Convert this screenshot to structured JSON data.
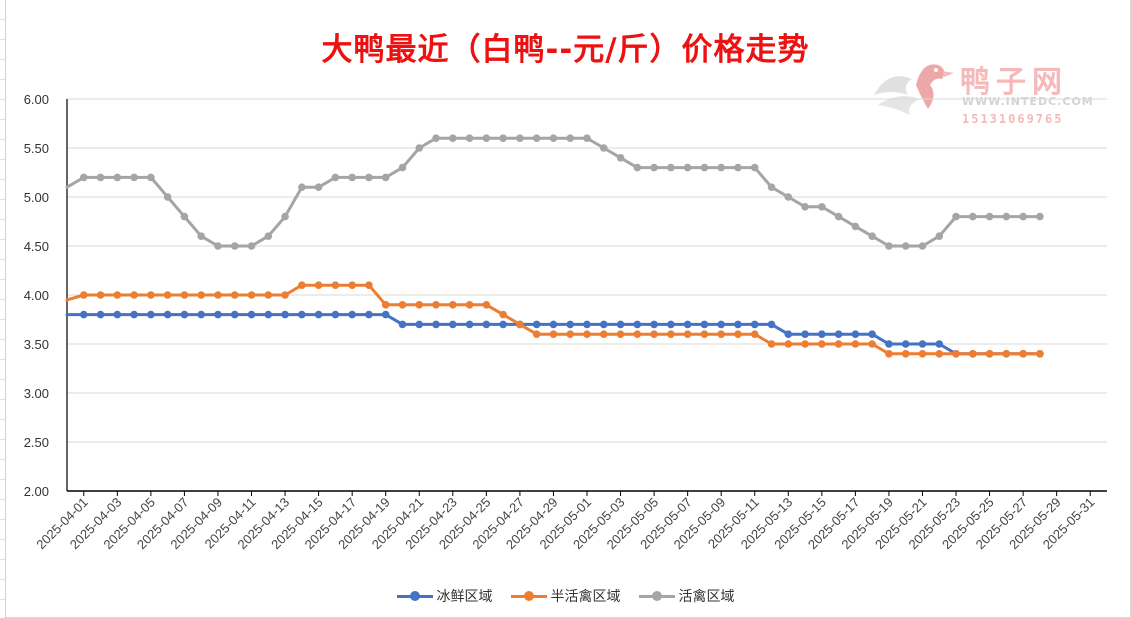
{
  "chart_data": {
    "type": "line",
    "title": "大鸭最近（白鸭--元/斤）价格走势",
    "xlabel": "",
    "ylabel": "",
    "ylim": [
      2.0,
      6.0
    ],
    "y_ticks": [
      "2.00",
      "2.50",
      "3.00",
      "3.50",
      "4.00",
      "4.50",
      "5.00",
      "5.50",
      "6.00"
    ],
    "x_tick_labels": [
      "2025-04-01",
      "2025-04-03",
      "2025-04-05",
      "2025-04-07",
      "2025-04-09",
      "2025-04-11",
      "2025-04-13",
      "2025-04-15",
      "2025-04-17",
      "2025-04-19",
      "2025-04-21",
      "2025-04-23",
      "2025-04-25",
      "2025-04-27",
      "2025-04-29",
      "2025-05-01",
      "2025-05-03",
      "2025-05-05",
      "2025-05-07",
      "2025-05-09",
      "2025-05-11",
      "2025-05-13",
      "2025-05-15",
      "2025-05-17",
      "2025-05-19",
      "2025-05-21",
      "2025-05-23",
      "2025-05-25",
      "2025-05-27",
      "2025-05-29",
      "2025-05-31"
    ],
    "x_range": [
      "2025-03-31",
      "2025-06-01"
    ],
    "grid": true,
    "legend_position": "bottom",
    "dates": [
      "2025-04-01",
      "2025-04-02",
      "2025-04-03",
      "2025-04-04",
      "2025-04-05",
      "2025-04-06",
      "2025-04-07",
      "2025-04-08",
      "2025-04-09",
      "2025-04-10",
      "2025-04-11",
      "2025-04-12",
      "2025-04-13",
      "2025-04-14",
      "2025-04-15",
      "2025-04-16",
      "2025-04-17",
      "2025-04-18",
      "2025-04-19",
      "2025-04-20",
      "2025-04-21",
      "2025-04-22",
      "2025-04-23",
      "2025-04-24",
      "2025-04-25",
      "2025-04-26",
      "2025-04-27",
      "2025-04-28",
      "2025-04-29",
      "2025-04-30",
      "2025-05-01",
      "2025-05-02",
      "2025-05-03",
      "2025-05-04",
      "2025-05-05",
      "2025-05-06",
      "2025-05-07",
      "2025-05-08",
      "2025-05-09",
      "2025-05-10",
      "2025-05-11",
      "2025-05-12",
      "2025-05-13",
      "2025-05-14",
      "2025-05-15",
      "2025-05-16",
      "2025-05-17",
      "2025-05-18",
      "2025-05-19",
      "2025-05-20",
      "2025-05-21",
      "2025-05-22",
      "2025-05-23",
      "2025-05-24",
      "2025-05-25",
      "2025-05-26",
      "2025-05-27",
      "2025-05-28"
    ],
    "series": [
      {
        "name": "冰鲜区域",
        "color": "#4472c4",
        "start_value": 3.8,
        "values": [
          3.8,
          3.8,
          3.8,
          3.8,
          3.8,
          3.8,
          3.8,
          3.8,
          3.8,
          3.8,
          3.8,
          3.8,
          3.8,
          3.8,
          3.8,
          3.8,
          3.8,
          3.8,
          3.8,
          3.7,
          3.7,
          3.7,
          3.7,
          3.7,
          3.7,
          3.7,
          3.7,
          3.7,
          3.7,
          3.7,
          3.7,
          3.7,
          3.7,
          3.7,
          3.7,
          3.7,
          3.7,
          3.7,
          3.7,
          3.7,
          3.7,
          3.7,
          3.6,
          3.6,
          3.6,
          3.6,
          3.6,
          3.6,
          3.5,
          3.5,
          3.5,
          3.5,
          3.4,
          3.4,
          3.4,
          3.4,
          3.4,
          3.4
        ]
      },
      {
        "name": "半活禽区域",
        "color": "#ed7d31",
        "start_value": 3.95,
        "values": [
          4.0,
          4.0,
          4.0,
          4.0,
          4.0,
          4.0,
          4.0,
          4.0,
          4.0,
          4.0,
          4.0,
          4.0,
          4.0,
          4.1,
          4.1,
          4.1,
          4.1,
          4.1,
          3.9,
          3.9,
          3.9,
          3.9,
          3.9,
          3.9,
          3.9,
          3.8,
          3.7,
          3.6,
          3.6,
          3.6,
          3.6,
          3.6,
          3.6,
          3.6,
          3.6,
          3.6,
          3.6,
          3.6,
          3.6,
          3.6,
          3.6,
          3.5,
          3.5,
          3.5,
          3.5,
          3.5,
          3.5,
          3.5,
          3.4,
          3.4,
          3.4,
          3.4,
          3.4,
          3.4,
          3.4,
          3.4,
          3.4,
          3.4
        ]
      },
      {
        "name": "活禽区域",
        "color": "#a5a5a5",
        "start_value": 5.1,
        "values": [
          5.2,
          5.2,
          5.2,
          5.2,
          5.2,
          5.0,
          4.8,
          4.6,
          4.5,
          4.5,
          4.5,
          4.6,
          4.8,
          5.1,
          5.1,
          5.2,
          5.2,
          5.2,
          5.2,
          5.3,
          5.5,
          5.6,
          5.6,
          5.6,
          5.6,
          5.6,
          5.6,
          5.6,
          5.6,
          5.6,
          5.6,
          5.5,
          5.4,
          5.3,
          5.3,
          5.3,
          5.3,
          5.3,
          5.3,
          5.3,
          5.3,
          5.1,
          5.0,
          4.9,
          4.9,
          4.8,
          4.7,
          4.6,
          4.5,
          4.5,
          4.5,
          4.6,
          4.8,
          4.8,
          4.8,
          4.8,
          4.8,
          4.8
        ]
      }
    ]
  },
  "watermark": {
    "logo_icon": "duck-logo-icon",
    "name": "鸭子网",
    "url": "WWW.INTEDC.COM",
    "phone": "15131069765"
  }
}
